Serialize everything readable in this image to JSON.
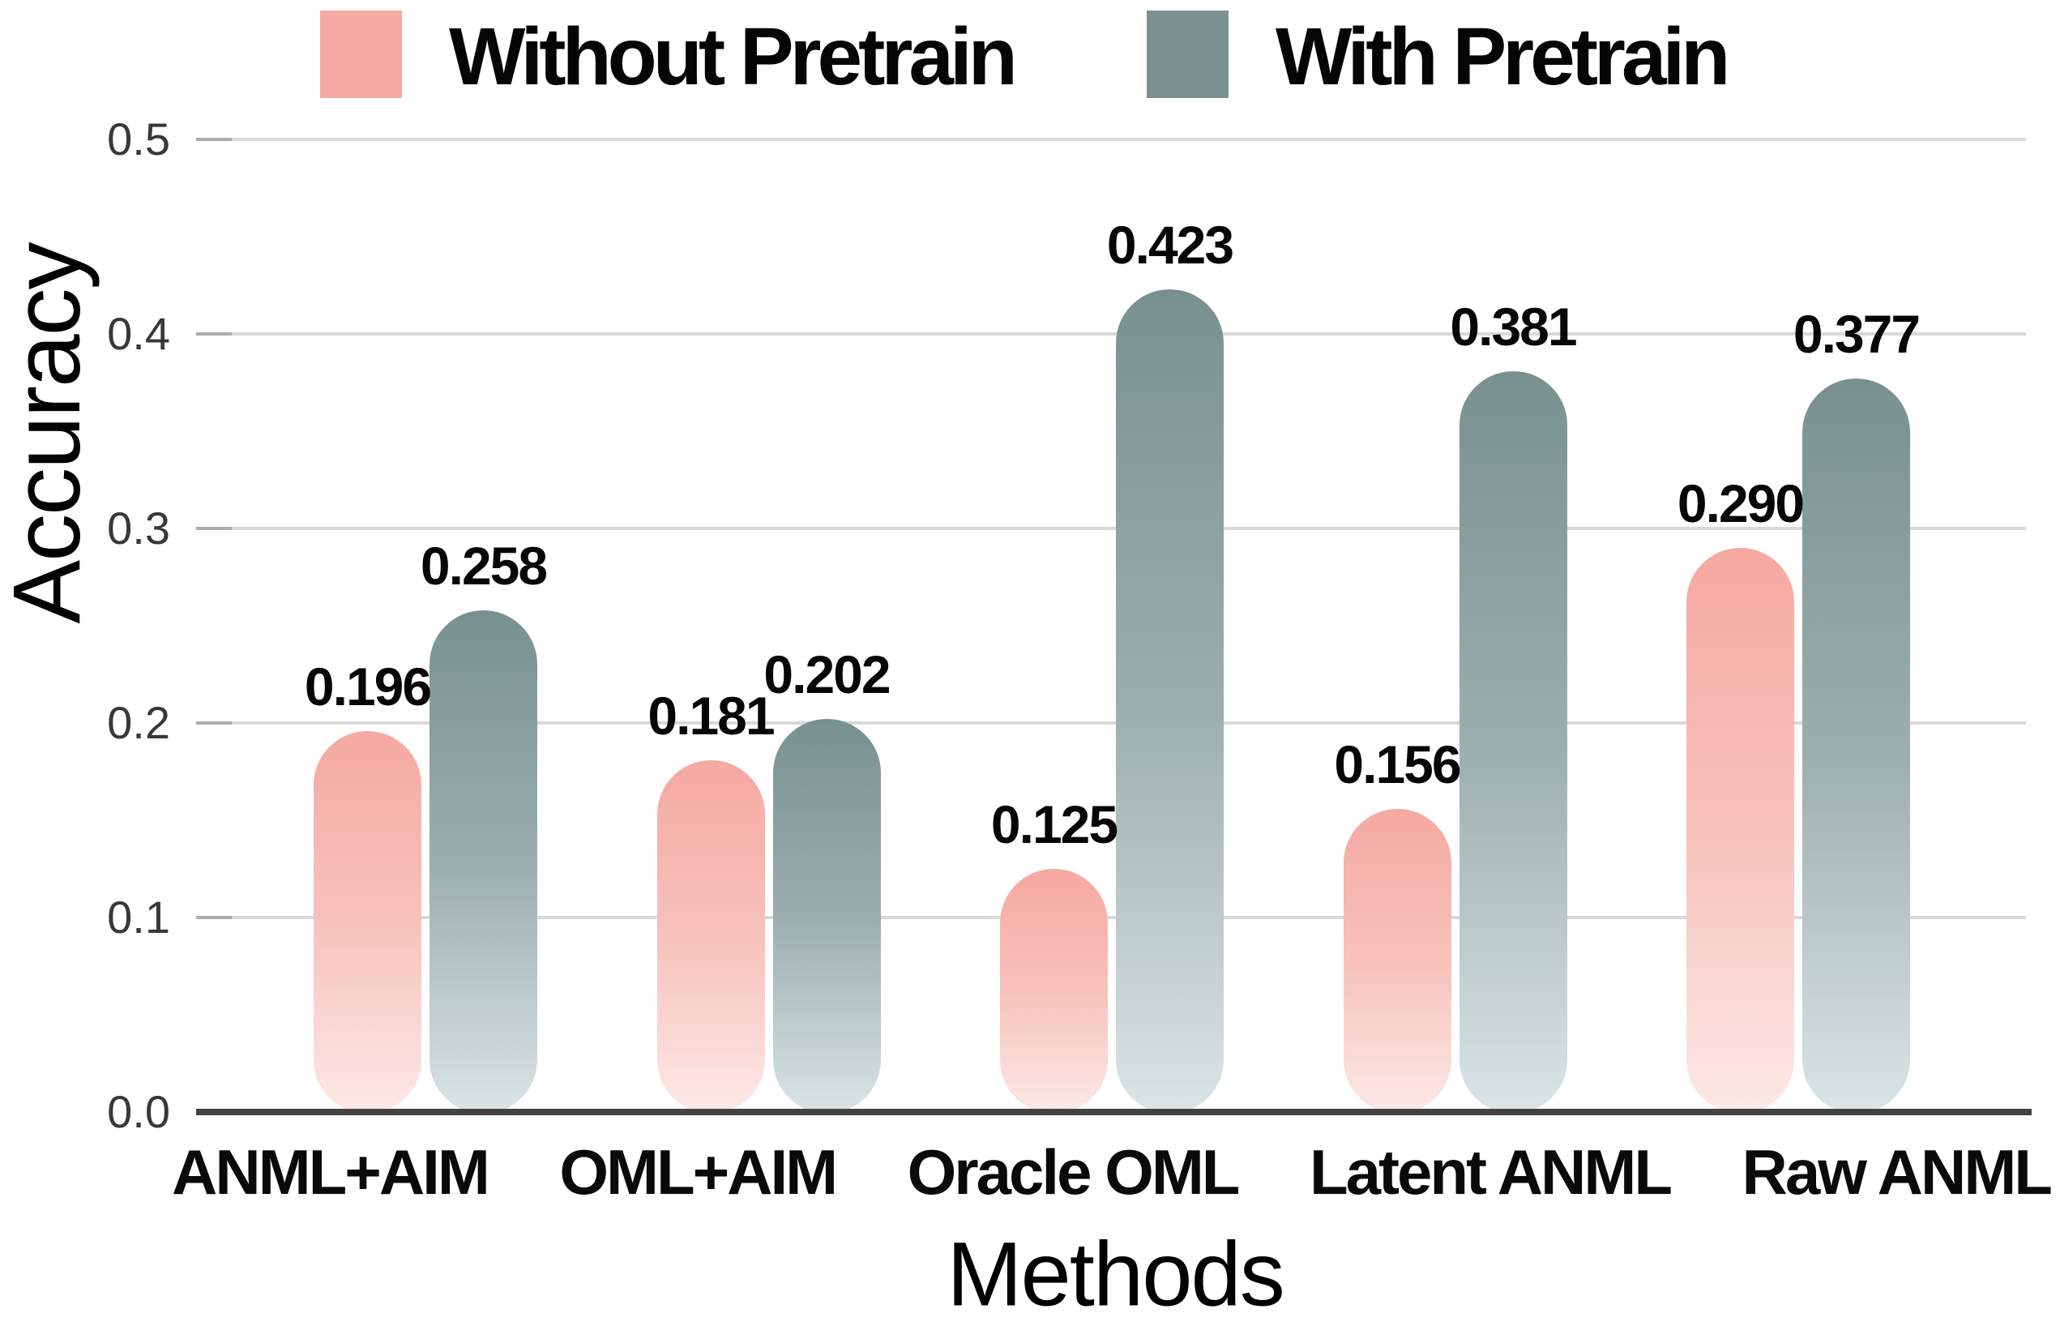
{
  "legend": {
    "items": [
      {
        "label": "Without Pretrain",
        "color": "#f5aba3"
      },
      {
        "label": "With Pretrain",
        "color": "#7a918f"
      }
    ]
  },
  "chart_data": {
    "type": "bar",
    "title": "",
    "categories": [
      "ANML+AIM",
      "OML+AIM",
      "Oracle OML",
      "Latent ANML",
      "Raw ANML"
    ],
    "series": [
      {
        "name": "Without Pretrain",
        "values": [
          0.196,
          0.181,
          0.125,
          0.156,
          0.29
        ],
        "value_labels": [
          "0.196",
          "0.181",
          "0.125",
          "0.156",
          "0.290"
        ],
        "color_top": "#f5a9a1",
        "color_mid": "#f8c3bd",
        "color_bottom": "#fce9e7"
      },
      {
        "name": "With Pretrain",
        "values": [
          0.258,
          0.202,
          0.423,
          0.381,
          0.377
        ],
        "value_labels": [
          "0.258",
          "0.202",
          "0.423",
          "0.381",
          "0.377"
        ],
        "color_top": "#78918f",
        "color_mid": "#9dafae",
        "color_bottom": "#dbe5e5"
      }
    ],
    "xlabel": "Methods",
    "ylabel": "Accuracy",
    "ylim": [
      0.0,
      0.5
    ],
    "ytick_labels": [
      "0.0",
      "0.1",
      "0.2",
      "0.3",
      "0.4",
      "0.5"
    ],
    "grid": true,
    "legend_position": "top",
    "colors": {
      "gridline": "#d9d9d9",
      "tick_dash": "#ababab",
      "axis_line": "#434343"
    }
  }
}
